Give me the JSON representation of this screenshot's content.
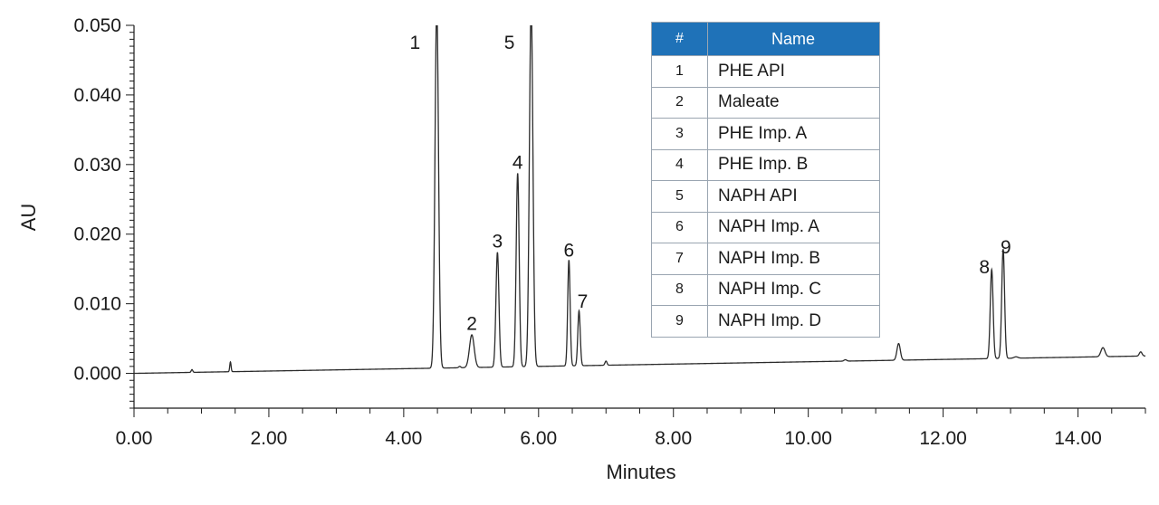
{
  "chart_data": {
    "type": "line",
    "xlabel": "Minutes",
    "ylabel": "AU",
    "xlim": [
      0,
      15
    ],
    "ylim": [
      -0.005,
      0.05
    ],
    "x_ticks": [
      "0.00",
      "2.00",
      "4.00",
      "6.00",
      "8.00",
      "10.00",
      "12.00",
      "14.00"
    ],
    "y_ticks": [
      "0.000",
      "0.010",
      "0.020",
      "0.030",
      "0.040",
      "0.050"
    ],
    "grid": false,
    "baseline": {
      "start": 0.0,
      "end": 0.0025
    },
    "peaks": [
      {
        "label": "1",
        "rt": 4.49,
        "height": 0.052,
        "width": 0.026
      },
      {
        "label": "2",
        "rt": 5.01,
        "height": 0.0047,
        "width": 0.035
      },
      {
        "label": "3",
        "rt": 5.39,
        "height": 0.0165,
        "width": 0.022
      },
      {
        "label": "4",
        "rt": 5.69,
        "height": 0.0278,
        "width": 0.022
      },
      {
        "label": "5",
        "rt": 5.89,
        "height": 0.052,
        "width": 0.026
      },
      {
        "label": "6",
        "rt": 6.45,
        "height": 0.0152,
        "width": 0.018
      },
      {
        "label": "7",
        "rt": 6.6,
        "height": 0.0079,
        "width": 0.018
      },
      {
        "label": "8",
        "rt": 12.72,
        "height": 0.0128,
        "width": 0.021
      },
      {
        "label": "9",
        "rt": 12.89,
        "height": 0.0157,
        "width": 0.021
      }
    ],
    "minor_peaks": [
      {
        "rt": 0.86,
        "height": 0.0004,
        "width": 0.012
      },
      {
        "rt": 1.43,
        "height": 0.0014,
        "width": 0.01
      },
      {
        "rt": 4.83,
        "height": 0.0002,
        "width": 0.015
      },
      {
        "rt": 7.0,
        "height": 0.0006,
        "width": 0.015
      },
      {
        "rt": 10.55,
        "height": 0.0002,
        "width": 0.02
      },
      {
        "rt": 11.34,
        "height": 0.0024,
        "width": 0.025
      },
      {
        "rt": 13.08,
        "height": 0.0002,
        "width": 0.03
      },
      {
        "rt": 14.37,
        "height": 0.0013,
        "width": 0.03
      },
      {
        "rt": 14.93,
        "height": 0.0006,
        "width": 0.02
      }
    ],
    "line_color": "#2b2b2b"
  },
  "legend": {
    "header_number": "#",
    "header_name": "Name",
    "header_color": "#1f72b8",
    "rows": [
      {
        "number": "1",
        "name": "PHE API"
      },
      {
        "number": "2",
        "name": "Maleate"
      },
      {
        "number": "3",
        "name": "PHE Imp. A"
      },
      {
        "number": "4",
        "name": "PHE Imp. B"
      },
      {
        "number": "5",
        "name": "NAPH API"
      },
      {
        "number": "6",
        "name": "NAPH Imp. A"
      },
      {
        "number": "7",
        "name": "NAPH Imp. B"
      },
      {
        "number": "8",
        "name": "NAPH Imp. C"
      },
      {
        "number": "9",
        "name": "NAPH Imp. D"
      }
    ]
  }
}
